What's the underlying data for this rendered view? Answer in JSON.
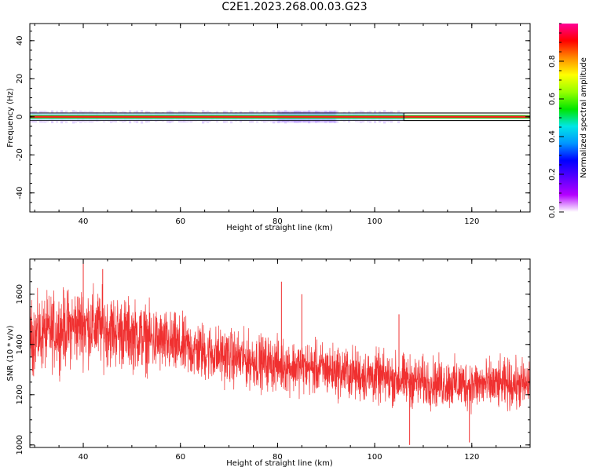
{
  "title": "C2E1.2023.268.00.03.G23",
  "chart_data": [
    {
      "type": "heatmap",
      "xlabel": "Height of straight line (km)",
      "ylabel": "Frequency (Hz)",
      "xlim": [
        29,
        132
      ],
      "ylim": [
        -50,
        49
      ],
      "xticks": [
        "40",
        "60",
        "80",
        "100",
        "120"
      ],
      "yticks": [
        "40",
        "20",
        "0",
        "-20",
        "-40"
      ],
      "colorbar": {
        "label": "Normalized spectral amplitude",
        "range": [
          0,
          1
        ],
        "ticks": [
          "0.0",
          "0.2",
          "0.4",
          "0.6",
          "0.8"
        ],
        "colors": [
          "#ffffff",
          "#b400ff",
          "#5a00ff",
          "#0000ff",
          "#0096ff",
          "#00e6e6",
          "#00e600",
          "#96ff00",
          "#ffff00",
          "#ff8c00",
          "#ff0000",
          "#ff0096"
        ]
      },
      "band": {
        "center_hz": 0,
        "halfwidth_hz": 2,
        "noise_until_km": 106,
        "bright_region_km": [
          80,
          92
        ],
        "box_start_km": 106
      },
      "grid": false
    },
    {
      "type": "line",
      "xlabel": "Height of straight line (km)",
      "ylabel": "SNR (10 * v/v)",
      "xlim": [
        29,
        132
      ],
      "ylim": [
        990,
        1740
      ],
      "xticks": [
        "40",
        "60",
        "80",
        "100",
        "120"
      ],
      "yticks": [
        "1000",
        "1200",
        "1400",
        "1600"
      ],
      "color": "#f03030",
      "trend": {
        "x": [
          29,
          40,
          50,
          60,
          70,
          80,
          90,
          100,
          110,
          120,
          132
        ],
        "mean": [
          1430,
          1480,
          1440,
          1390,
          1350,
          1320,
          1300,
          1270,
          1250,
          1240,
          1240
        ],
        "spread": [
          130,
          140,
          125,
          110,
          100,
          95,
          95,
          95,
          90,
          90,
          90
        ]
      },
      "spikes": [
        {
          "x": 40,
          "y": 1740
        },
        {
          "x": 44,
          "y": 1700
        },
        {
          "x": 80.8,
          "y": 1650
        },
        {
          "x": 85,
          "y": 1600
        },
        {
          "x": 105,
          "y": 1520
        },
        {
          "x": 107.2,
          "y": 1000
        },
        {
          "x": 119.5,
          "y": 1010
        }
      ],
      "grid": false
    }
  ]
}
